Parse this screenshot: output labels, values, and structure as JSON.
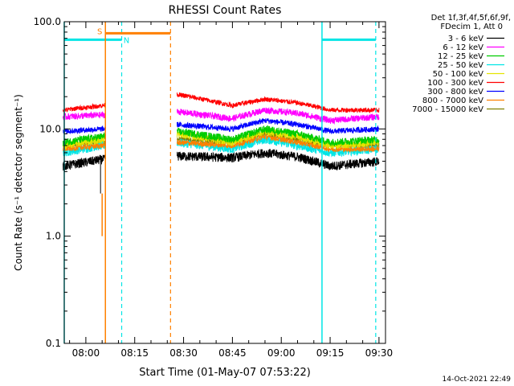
{
  "chart_data": {
    "type": "line",
    "title": "RHESSI Count Rates",
    "xlabel": "Start Time (01-May-07 07:53:22)",
    "ylabel": "Count Rate (s⁻¹ detector segment⁻¹)",
    "yscale": "log",
    "ylim": [
      0.1,
      100.0
    ],
    "xlim": [
      "07:53:22",
      "09:32:00"
    ],
    "grid": false,
    "legend_position": "top-right",
    "y_ticks": [
      "0.1",
      "1.0",
      "10.0",
      "100.0"
    ],
    "x_ticks": [
      "08:00",
      "08:15",
      "08:30",
      "08:45",
      "09:00",
      "09:15",
      "09:30"
    ],
    "legend_header": [
      "Det 1f,3f,4f,5f,6f,9f,",
      "FDecim 1, Att 0"
    ],
    "footer_timestamp": "14-Oct-2021 22:49",
    "colors": {
      "3 - 6 keV": "#000000",
      "6 - 12 keV": "#ff00ff",
      "12 - 25 keV": "#00cc00",
      "25 - 50 keV": "#00e5e5",
      "50 - 100 keV": "#e5e500",
      "100 - 300 keV": "#ff0000",
      "300 - 800 keV": "#0000ff",
      "800 - 7000 keV": "#ff8000",
      "7000 - 15000 keV": "#808000",
      "saa": "#00e5e5",
      "night": "#ff8000"
    },
    "series_order_draw": [
      "7000 - 15000 keV",
      "25 - 50 keV",
      "3 - 6 keV",
      "800 - 7000 keV",
      "50 - 100 keV",
      "12 - 25 keV",
      "300 - 800 keV",
      "6 - 12 keV",
      "100 - 300 keV"
    ],
    "series": [
      {
        "name": "3 - 6 keV",
        "noise": 0.1,
        "x": [
          "07:53",
          "08:05",
          "08:28",
          "08:45",
          "08:55",
          "09:05",
          "09:15",
          "09:30"
        ],
        "y": [
          4.5,
          5.2,
          5.6,
          5.4,
          6.0,
          5.5,
          4.5,
          5.0
        ]
      },
      {
        "name": "6 - 12 keV",
        "noise": 0.07,
        "x": [
          "07:53",
          "08:05",
          "08:28",
          "08:45",
          "08:55",
          "09:05",
          "09:15",
          "09:30"
        ],
        "y": [
          13.0,
          13.5,
          14.5,
          12.5,
          15.0,
          14.0,
          12.0,
          13.0
        ]
      },
      {
        "name": "12 - 25 keV",
        "noise": 0.08,
        "x": [
          "07:53",
          "08:05",
          "08:28",
          "08:45",
          "08:55",
          "09:05",
          "09:15",
          "09:30"
        ],
        "y": [
          7.5,
          8.5,
          9.5,
          8.0,
          10.0,
          9.0,
          7.5,
          8.0
        ]
      },
      {
        "name": "25 - 50 keV",
        "noise": 0.09,
        "x": [
          "07:53",
          "08:05",
          "08:28",
          "08:45",
          "08:55",
          "09:05",
          "09:15",
          "09:30"
        ],
        "y": [
          6.0,
          7.0,
          7.5,
          6.5,
          8.0,
          7.0,
          6.0,
          6.5
        ]
      },
      {
        "name": "50 - 100 keV",
        "noise": 0.08,
        "x": [
          "07:53",
          "08:05",
          "08:28",
          "08:45",
          "08:55",
          "09:05",
          "09:15",
          "09:30"
        ],
        "y": [
          7.0,
          8.0,
          9.0,
          7.5,
          9.5,
          8.5,
          7.0,
          7.5
        ]
      },
      {
        "name": "100 - 300 keV",
        "noise": 0.05,
        "x": [
          "07:53",
          "08:05",
          "08:28",
          "08:45",
          "08:55",
          "09:05",
          "09:15",
          "09:30"
        ],
        "y": [
          15.0,
          16.5,
          21.0,
          16.5,
          19.0,
          17.5,
          15.0,
          15.0
        ]
      },
      {
        "name": "300 - 800 keV",
        "noise": 0.06,
        "x": [
          "07:53",
          "08:05",
          "08:28",
          "08:45",
          "08:55",
          "09:05",
          "09:15",
          "09:30"
        ],
        "y": [
          9.5,
          10.0,
          11.0,
          10.0,
          12.0,
          11.0,
          9.5,
          10.0
        ]
      },
      {
        "name": "800 - 7000 keV",
        "noise": 0.06,
        "x": [
          "07:53",
          "08:05",
          "08:28",
          "08:45",
          "08:55",
          "09:05",
          "09:15",
          "09:30"
        ],
        "y": [
          6.5,
          7.0,
          7.5,
          7.0,
          8.5,
          7.5,
          6.5,
          6.5
        ]
      },
      {
        "name": "7000 - 15000 keV",
        "noise": 0.06,
        "x": [
          "07:53",
          "08:05",
          "08:28",
          "08:45",
          "08:55",
          "09:05",
          "09:15",
          "09:30"
        ],
        "y": [
          7.0,
          7.5,
          8.0,
          7.5,
          9.0,
          8.0,
          7.0,
          7.0
        ]
      }
    ],
    "drop_spike": {
      "x": "08:05:00",
      "y": [
        2.5,
        1.0
      ]
    },
    "gap": [
      "08:06",
      "08:28"
    ],
    "annotations": {
      "saa": {
        "label": "N",
        "solid_lines": [
          "07:53:22",
          "09:12:30"
        ],
        "dashed_lines": [
          "08:11:00",
          "09:29:00"
        ],
        "bars": [
          {
            "from": "07:53:22",
            "to": "08:11:00",
            "y": 68
          },
          {
            "from": "09:12:30",
            "to": "09:29:00",
            "y": 68
          }
        ]
      },
      "night": {
        "label": "S",
        "solid_lines": [
          "08:06:00"
        ],
        "dashed_lines": [
          "08:26:00"
        ],
        "bars": [
          {
            "from": "08:06:00",
            "to": "08:26:00",
            "y": 78
          }
        ]
      }
    }
  }
}
